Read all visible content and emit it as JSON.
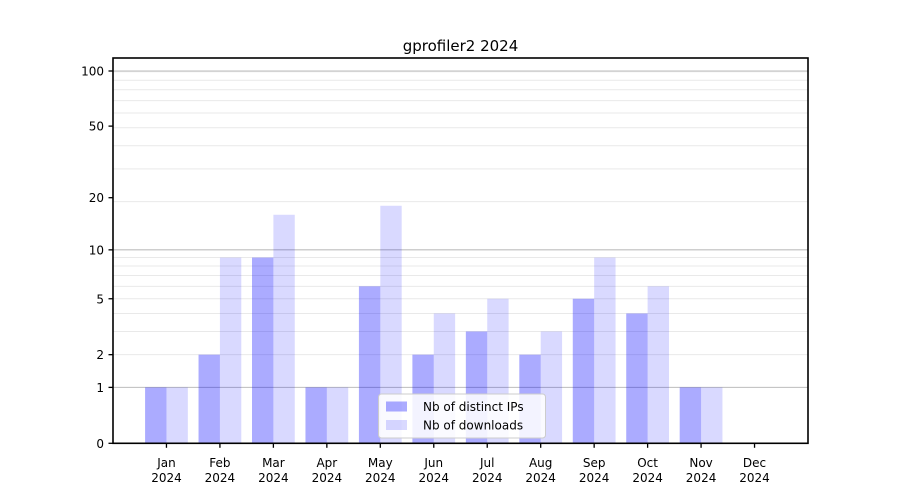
{
  "figure": {
    "title": "gprofiler2 2024"
  },
  "chart_data": {
    "type": "bar",
    "title": "gprofiler2 2024",
    "xlabel": "",
    "ylabel": "",
    "x": {
      "categories": [
        "Jan",
        "Feb",
        "Mar",
        "Apr",
        "May",
        "Jun",
        "Jul",
        "Aug",
        "Sep",
        "Oct",
        "Nov",
        "Dec"
      ],
      "year": "2024"
    },
    "y": {
      "scale": "log1p",
      "tick_labels": [
        0,
        1,
        2,
        5,
        10,
        20,
        50,
        100
      ],
      "lim": [
        0,
        118
      ],
      "grid": "on",
      "grid_major_values": [
        1,
        10,
        100
      ],
      "grid_minor_values": [
        2,
        3,
        4,
        5,
        6,
        7,
        8,
        9,
        19,
        29,
        39,
        49,
        59,
        69,
        79,
        89,
        99
      ]
    },
    "series": [
      {
        "name": "Nb of distinct IPs",
        "color": "rgba(0,0,255,0.33)",
        "values": [
          1,
          2,
          9,
          1,
          6,
          2,
          3,
          2,
          5,
          4,
          1,
          0
        ]
      },
      {
        "name": "Nb of downloads",
        "color": "rgba(0,0,255,0.15)",
        "values": [
          1,
          9,
          16,
          1,
          18,
          4,
          5,
          3,
          9,
          6,
          1,
          0
        ]
      }
    ],
    "legend": {
      "position": "lower-center",
      "entries": [
        "Nb of distinct IPs",
        "Nb of downloads"
      ]
    },
    "colors": {
      "background": "#ffffff",
      "axis": "#000000",
      "text": "#000000",
      "grid_major": "#bdbdbd",
      "grid_minor": "#e9e9e9",
      "legend_border": "#cccccc",
      "legend_background": "rgba(255,255,255,0.85)"
    }
  }
}
